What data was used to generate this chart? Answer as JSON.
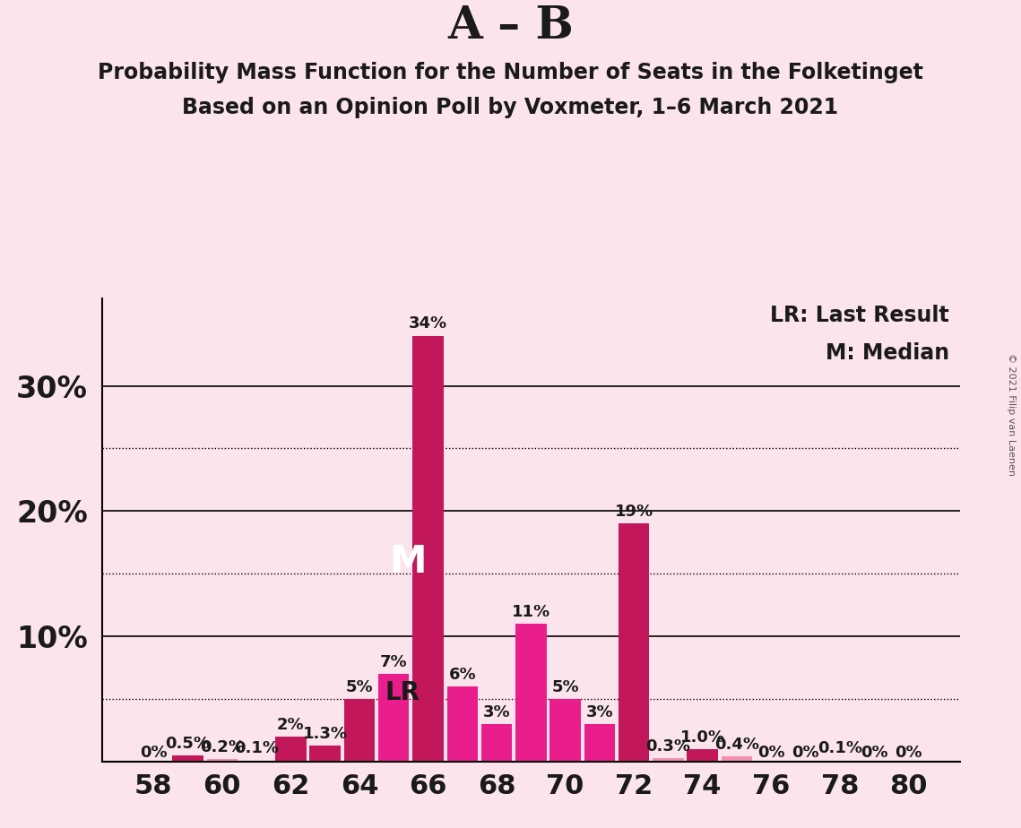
{
  "title_main": "A – B",
  "title_sub1": "Probability Mass Function for the Number of Seats in the Folketinget",
  "title_sub2": "Based on an Opinion Poll by Voxmeter, 1–6 March 2021",
  "copyright": "© 2021 Filip van Laenen",
  "legend_lr": "LR: Last Result",
  "legend_m": "M: Median",
  "background_color": "#fce4ec",
  "plot_bg_color": "#fce4ec",
  "seats": [
    58,
    59,
    60,
    61,
    62,
    63,
    64,
    65,
    66,
    67,
    68,
    69,
    70,
    71,
    72,
    73,
    74,
    75,
    76,
    77,
    78,
    79,
    80
  ],
  "values": [
    0.0,
    0.5,
    0.2,
    0.1,
    2.0,
    1.3,
    5.0,
    7.0,
    34.0,
    6.0,
    3.0,
    11.0,
    5.0,
    3.0,
    19.0,
    0.3,
    1.0,
    0.4,
    0.0,
    0.0,
    0.1,
    0.0,
    0.0
  ],
  "labels": [
    "0%",
    "0.5%",
    "0.2%",
    "0.1%",
    "2%",
    "1.3%",
    "5%",
    "7%",
    "34%",
    "6%",
    "3%",
    "11%",
    "5%",
    "3%",
    "19%",
    "0.3%",
    "1.0%",
    "0.4%",
    "0%",
    "0%",
    "0.1%",
    "0%",
    "0%"
  ],
  "bar_colors": [
    "#f48fb1",
    "#c2185b",
    "#f48fb1",
    "#c2185b",
    "#c2185b",
    "#c2185b",
    "#c2185b",
    "#e91e8c",
    "#c2185b",
    "#e91e8c",
    "#e91e8c",
    "#e91e8c",
    "#e91e8c",
    "#e91e8c",
    "#c2185b",
    "#f48fb1",
    "#c2185b",
    "#f48fb1",
    "#f48fb1",
    "#f48fb1",
    "#f48fb1",
    "#f48fb1",
    "#f48fb1"
  ],
  "median_seat": 66,
  "lr_seat": 64,
  "solid_gridlines": [
    10,
    20,
    30
  ],
  "dotted_gridlines": [
    5,
    15,
    25
  ],
  "ylim": [
    0,
    37
  ],
  "title_fontsize_main": 36,
  "title_fontsize_sub": 17,
  "bar_label_fontsize": 13,
  "ytick_fontsize": 24,
  "xtick_fontsize": 22
}
